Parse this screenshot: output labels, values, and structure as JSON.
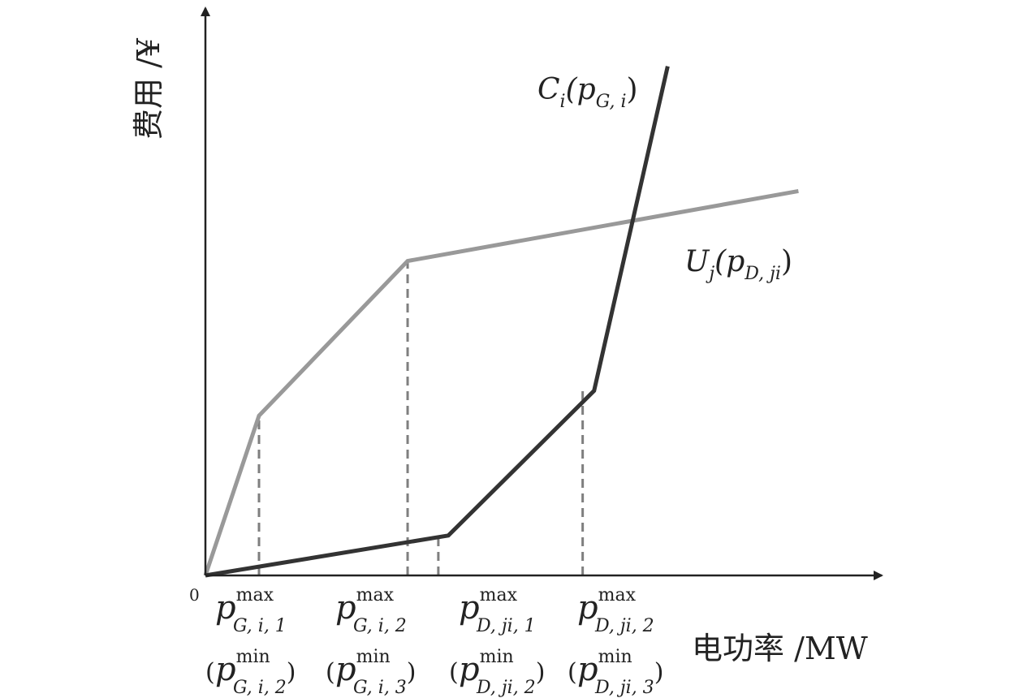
{
  "chart_data": {
    "type": "line",
    "title": "",
    "ylabel": "费用 /¥",
    "xlabel": "电功率 /MW",
    "origin_label": "0",
    "xlim": [
      0,
      10
    ],
    "ylim": [
      0,
      10
    ],
    "colors": {
      "cost": "#333333",
      "utility": "#999999",
      "guide": "#7f7f7f",
      "axis": "#222222"
    },
    "series": [
      {
        "name": "C_i(p_G,i)",
        "label": {
          "main": "C",
          "sub1": "i",
          "open": "(p",
          "sub2": "G, i",
          "close": ")"
        },
        "x": [
          0,
          3.4,
          5.44,
          6.47
        ],
        "y": [
          0,
          0.8,
          3.7,
          10.2
        ]
      },
      {
        "name": "U_j(p_D,ji)",
        "label": {
          "main": "U",
          "sub1": "j",
          "open": "(p",
          "sub2": "D, ji",
          "close": ")"
        },
        "x": [
          0,
          0.75,
          2.83,
          8.3
        ],
        "y": [
          0,
          3.2,
          6.3,
          7.7
        ]
      }
    ],
    "guides": [
      {
        "x": 0.75,
        "y": 3.2
      },
      {
        "x": 2.83,
        "y": 6.3
      },
      {
        "x": 3.26,
        "y": 0.8
      },
      {
        "x": 5.28,
        "y": 3.7
      }
    ],
    "tick_labels": [
      {
        "x": 0.75,
        "top": {
          "sub": "G, i, 1"
        },
        "bottom": {
          "sub": "G, i, 2"
        }
      },
      {
        "x": 2.83,
        "top": {
          "sub": "G, i, 2"
        },
        "bottom": {
          "sub": "G, i, 3"
        }
      },
      {
        "x": 4.5,
        "top": {
          "sub": "D, ji, 1"
        },
        "bottom": {
          "sub": "D, ji, 2"
        }
      },
      {
        "x": 6.2,
        "top": {
          "sub": "D, ji, 2"
        },
        "bottom": {
          "sub": "D, ji, 3"
        }
      }
    ],
    "sym": "p",
    "sup_max": "max",
    "sup_min": "min",
    "paren_open": "(",
    "paren_close": ")"
  }
}
